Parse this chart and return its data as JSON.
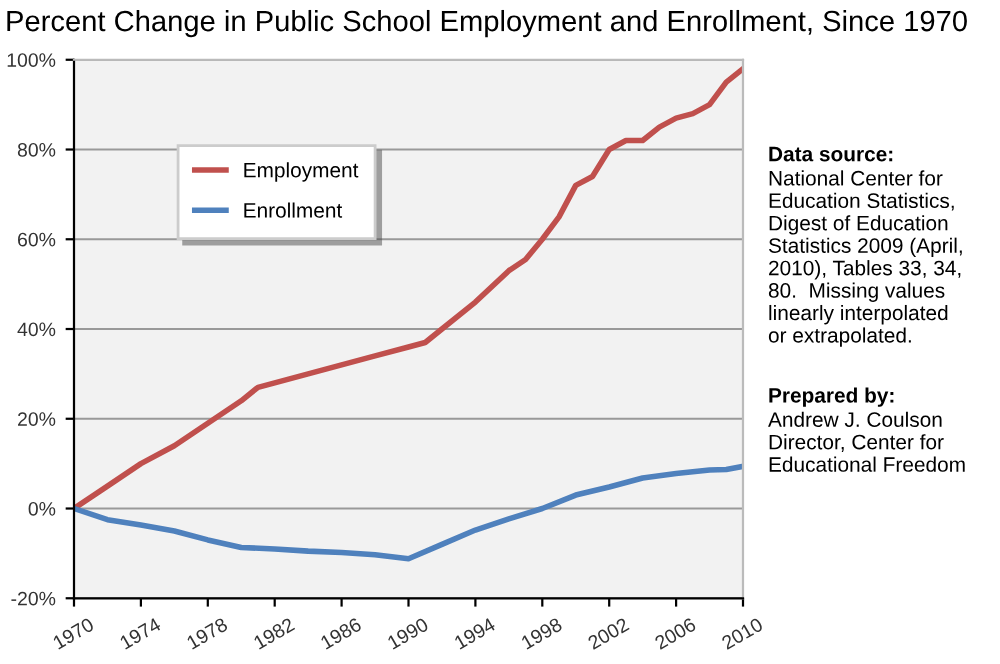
{
  "chart_data": {
    "type": "line",
    "title": "Percent Change in Public School Employment and Enrollment, Since 1970",
    "series": [
      {
        "name": "Employment",
        "color": "#c0504d",
        "x": [
          1970,
          1972,
          1974,
          1976,
          1978,
          1980,
          1981,
          1984,
          1986,
          1988,
          1990,
          1991,
          1992,
          1994,
          1996,
          1997,
          1998,
          1999,
          2000,
          2001,
          2002,
          2003,
          2004,
          2005,
          2006,
          2007,
          2008,
          2009,
          2010
        ],
        "values": [
          0,
          5,
          10,
          14,
          19,
          24,
          27,
          30,
          32,
          34,
          36,
          37,
          40,
          46,
          53,
          55.5,
          60,
          65,
          72,
          74,
          80,
          82,
          82,
          85,
          87,
          88,
          90,
          95,
          98
        ]
      },
      {
        "name": "Enrollment",
        "color": "#4f81bd",
        "x": [
          1970,
          1972,
          1974,
          1976,
          1978,
          1980,
          1982,
          1984,
          1986,
          1988,
          1990,
          1992,
          1994,
          1996,
          1998,
          2000,
          2002,
          2004,
          2006,
          2008,
          2009,
          2010
        ],
        "values": [
          0,
          -2.5,
          -3.7,
          -5,
          -7,
          -8.7,
          -9,
          -9.5,
          -9.8,
          -10.3,
          -11.2,
          -8,
          -4.8,
          -2.3,
          0,
          3,
          4.8,
          6.8,
          7.8,
          8.6,
          8.7,
          9.4
        ]
      }
    ],
    "xlim": [
      1970,
      2010
    ],
    "xticks": [
      1970,
      1974,
      1978,
      1982,
      1986,
      1990,
      1994,
      1998,
      2002,
      2006,
      2010
    ],
    "ylim": [
      -20,
      100
    ],
    "yticks": [
      {
        "value": -20,
        "label": "-20%"
      },
      {
        "value": 0,
        "label": "0%"
      },
      {
        "value": 20,
        "label": "20%"
      },
      {
        "value": 40,
        "label": "40%"
      },
      {
        "value": 60,
        "label": "60%"
      },
      {
        "value": 80,
        "label": "80%"
      },
      {
        "value": 100,
        "label": "100%"
      }
    ],
    "grid": "y",
    "legend": "top left",
    "marker": "none",
    "line_style": "solid",
    "annotations": [
      "Data source:",
      "National Center for\nEducation Statistics,\nDigest of Education\nStatistics 2009 (April,\n2010), Tables 33, 34,\n80.  Missing values\nlinearly interpolated\nor extrapolated.",
      "Prepared by:",
      "Andrew J. Coulson\nDirector, Center for\nEducational Freedom"
    ]
  }
}
